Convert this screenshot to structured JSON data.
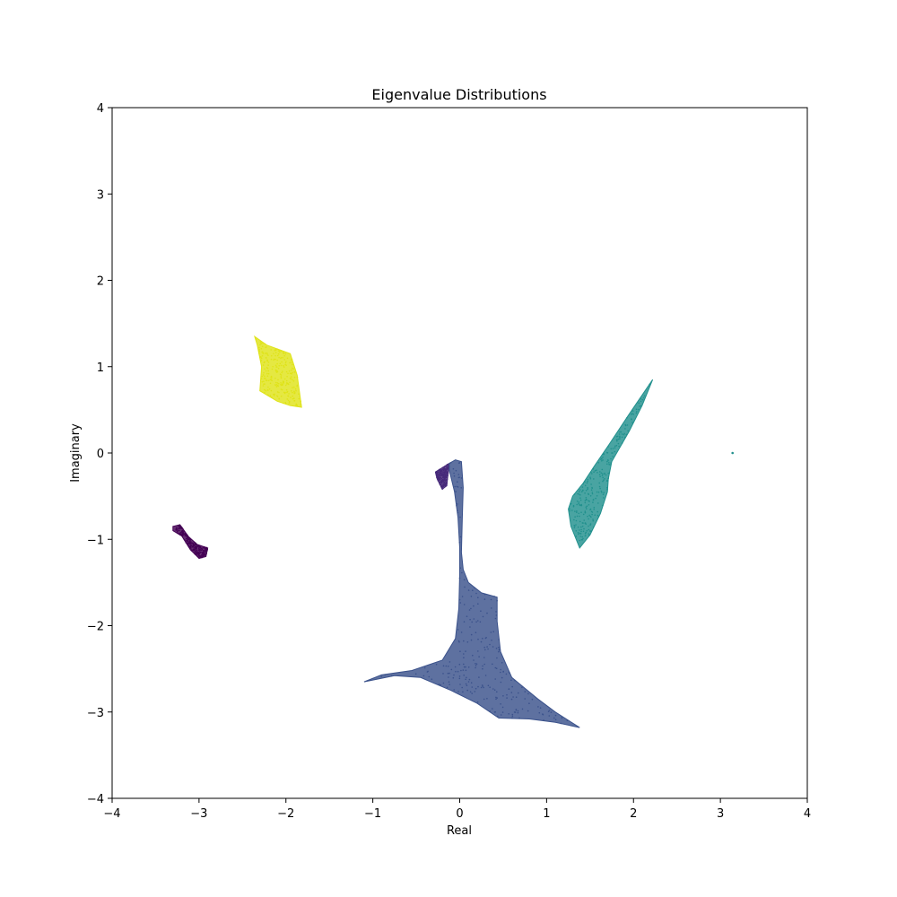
{
  "chart_data": {
    "type": "scatter",
    "title": "Eigenvalue Distributions",
    "xlabel": "Real",
    "ylabel": "Imaginary",
    "xlim": [
      -4,
      4
    ],
    "ylim": [
      -4,
      4
    ],
    "xticks": [
      -4,
      -3,
      -2,
      -1,
      0,
      1,
      2,
      3,
      4
    ],
    "yticks": [
      -4,
      -3,
      -2,
      -1,
      0,
      1,
      2,
      3,
      4
    ],
    "xtick_labels": [
      "−4",
      "−3",
      "−2",
      "−1",
      "0",
      "1",
      "2",
      "3",
      "4"
    ],
    "ytick_labels": [
      "−4",
      "−3",
      "−2",
      "−1",
      "0",
      "1",
      "2",
      "3",
      "4"
    ],
    "grid": false,
    "legend": "none",
    "colormap": "viridis",
    "series": [
      {
        "color": "#440154",
        "outline": [
          [
            -3.3,
            -0.85
          ],
          [
            -3.22,
            -0.83
          ],
          [
            -3.12,
            -0.97
          ],
          [
            -3.02,
            -1.06
          ],
          [
            -2.9,
            -1.1
          ],
          [
            -2.92,
            -1.2
          ],
          [
            -3.0,
            -1.22
          ],
          [
            -3.1,
            -1.12
          ],
          [
            -3.2,
            -0.96
          ],
          [
            -3.3,
            -0.9
          ]
        ]
      },
      {
        "color": "#472a7a",
        "outline": [
          [
            -0.28,
            -0.22
          ],
          [
            -0.12,
            -0.12
          ],
          [
            -0.15,
            -0.38
          ],
          [
            -0.2,
            -0.42
          ],
          [
            -0.26,
            -0.3
          ]
        ]
      },
      {
        "color": "#3b528b",
        "outline": [
          [
            -0.12,
            -0.12
          ],
          [
            -0.05,
            -0.08
          ],
          [
            0.02,
            -0.1
          ],
          [
            0.04,
            -0.4
          ],
          [
            0.03,
            -0.75
          ],
          [
            0.02,
            -1.15
          ],
          [
            0.04,
            -1.35
          ],
          [
            0.1,
            -1.5
          ],
          [
            0.25,
            -1.62
          ],
          [
            0.43,
            -1.67
          ],
          [
            0.43,
            -1.95
          ],
          [
            0.47,
            -2.3
          ],
          [
            0.6,
            -2.6
          ],
          [
            0.9,
            -2.85
          ],
          [
            1.1,
            -3.0
          ],
          [
            1.38,
            -3.18
          ],
          [
            1.1,
            -3.12
          ],
          [
            0.8,
            -3.08
          ],
          [
            0.45,
            -3.07
          ],
          [
            0.2,
            -2.9
          ],
          [
            -0.1,
            -2.75
          ],
          [
            -0.45,
            -2.6
          ],
          [
            -0.75,
            -2.58
          ],
          [
            -1.1,
            -2.65
          ],
          [
            -0.9,
            -2.57
          ],
          [
            -0.55,
            -2.52
          ],
          [
            -0.2,
            -2.4
          ],
          [
            -0.05,
            -2.15
          ],
          [
            -0.01,
            -1.8
          ],
          [
            0.0,
            -1.4
          ],
          [
            0.0,
            -1.1
          ],
          [
            -0.02,
            -0.75
          ],
          [
            -0.06,
            -0.45
          ],
          [
            -0.12,
            -0.2
          ]
        ]
      },
      {
        "color": "#21908d",
        "outline": [
          [
            2.22,
            0.85
          ],
          [
            1.95,
            0.45
          ],
          [
            1.72,
            0.1
          ],
          [
            1.55,
            -0.15
          ],
          [
            1.42,
            -0.35
          ],
          [
            1.3,
            -0.5
          ],
          [
            1.25,
            -0.65
          ],
          [
            1.28,
            -0.85
          ],
          [
            1.38,
            -1.1
          ],
          [
            1.5,
            -0.95
          ],
          [
            1.62,
            -0.7
          ],
          [
            1.7,
            -0.45
          ],
          [
            1.71,
            -0.3
          ],
          [
            1.75,
            -0.1
          ],
          [
            1.95,
            0.25
          ],
          [
            2.1,
            0.55
          ]
        ]
      },
      {
        "color": "#21908d",
        "points": [
          [
            3.14,
            0.0
          ]
        ]
      },
      {
        "color": "#dfe318",
        "outline": [
          [
            -2.36,
            1.35
          ],
          [
            -2.22,
            1.25
          ],
          [
            -1.95,
            1.15
          ],
          [
            -1.87,
            0.9
          ],
          [
            -1.82,
            0.53
          ],
          [
            -1.95,
            0.55
          ],
          [
            -2.1,
            0.6
          ],
          [
            -2.3,
            0.72
          ],
          [
            -2.28,
            1.0
          ],
          [
            -2.33,
            1.25
          ]
        ]
      }
    ]
  }
}
